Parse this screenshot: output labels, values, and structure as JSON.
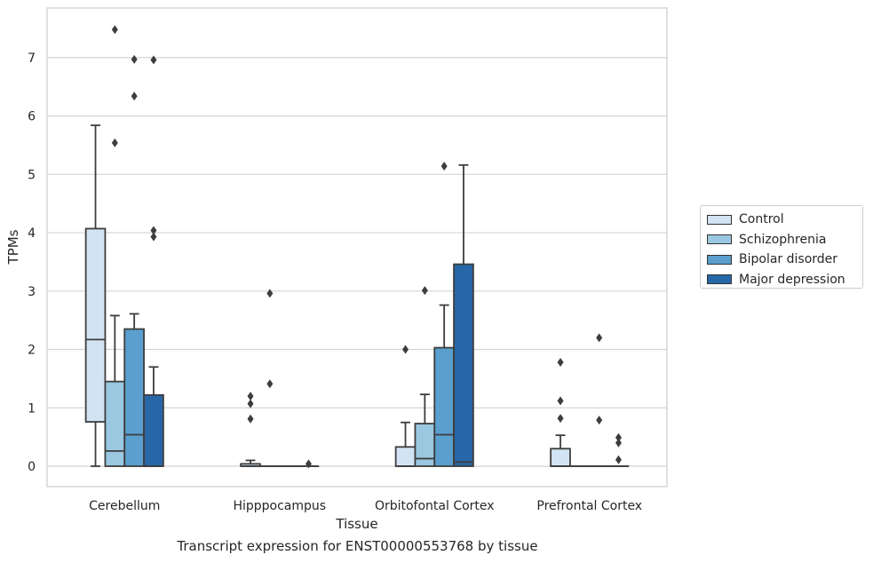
{
  "caption": "Transcript expression for ENST00000553768 by tissue",
  "chart_data": {
    "type": "box",
    "xlabel": "Tissue",
    "ylabel": "TPMs",
    "ylim": [
      -0.35,
      7.85
    ],
    "yticks": [
      0,
      1,
      2,
      3,
      4,
      5,
      6,
      7
    ],
    "grid": "horizontal",
    "legend_position": "right",
    "categories": [
      "Cerebellum",
      "Hipppocampus",
      "Orbitofontal Cortex",
      "Prefrontal Cortex"
    ],
    "series": [
      {
        "name": "Control",
        "color": "#d2e3f3",
        "boxes": [
          {
            "whisker_low": 0,
            "q1": 0.76,
            "median": 2.17,
            "q3": 4.07,
            "whisker_high": 5.84,
            "outliers": []
          },
          {
            "whisker_low": 0,
            "q1": 0,
            "median": 0,
            "q3": 0.04,
            "whisker_high": 0.1,
            "outliers": [
              0.81,
              1.07,
              1.2
            ]
          },
          {
            "whisker_low": 0,
            "q1": 0,
            "median": 0,
            "q3": 0.33,
            "whisker_high": 0.75,
            "outliers": [
              2.0
            ]
          },
          {
            "whisker_low": 0,
            "q1": 0,
            "median": 0,
            "q3": 0.3,
            "whisker_high": 0.53,
            "outliers": [
              0.82,
              1.12,
              1.78
            ]
          }
        ]
      },
      {
        "name": "Schizophrenia",
        "color": "#9ac8e0",
        "boxes": [
          {
            "whisker_low": 0,
            "q1": 0,
            "median": 0.26,
            "q3": 1.45,
            "whisker_high": 2.58,
            "outliers": [
              5.54,
              7.48
            ]
          },
          {
            "whisker_low": 0,
            "q1": 0,
            "median": 0,
            "q3": 0,
            "whisker_high": 0,
            "outliers": [
              1.41,
              2.96
            ]
          },
          {
            "whisker_low": 0,
            "q1": 0,
            "median": 0.13,
            "q3": 0.73,
            "whisker_high": 1.23,
            "outliers": [
              3.01
            ]
          },
          {
            "whisker_low": 0,
            "q1": 0,
            "median": 0,
            "q3": 0,
            "whisker_high": 0,
            "outliers": []
          }
        ]
      },
      {
        "name": "Bipolar disorder",
        "color": "#5a9fcd",
        "boxes": [
          {
            "whisker_low": 0,
            "q1": 0,
            "median": 0.54,
            "q3": 2.35,
            "whisker_high": 2.61,
            "outliers": [
              6.34,
              6.97
            ]
          },
          {
            "whisker_low": 0,
            "q1": 0,
            "median": 0,
            "q3": 0,
            "whisker_high": 0,
            "outliers": []
          },
          {
            "whisker_low": 0,
            "q1": 0,
            "median": 0.54,
            "q3": 2.03,
            "whisker_high": 2.76,
            "outliers": [
              5.14
            ]
          },
          {
            "whisker_low": 0,
            "q1": 0,
            "median": 0,
            "q3": 0,
            "whisker_high": 0,
            "outliers": [
              0.79,
              2.2
            ]
          }
        ]
      },
      {
        "name": "Major depression",
        "color": "#2767a7",
        "boxes": [
          {
            "whisker_low": 0,
            "q1": 0,
            "median": 0,
            "q3": 1.22,
            "whisker_high": 1.7,
            "outliers": [
              3.93,
              4.04,
              6.96
            ]
          },
          {
            "whisker_low": 0,
            "q1": 0,
            "median": 0,
            "q3": 0,
            "whisker_high": 0,
            "outliers": [
              0.04
            ]
          },
          {
            "whisker_low": 0,
            "q1": 0,
            "median": 0.07,
            "q3": 3.46,
            "whisker_high": 5.16,
            "outliers": []
          },
          {
            "whisker_low": 0,
            "q1": 0,
            "median": 0,
            "q3": 0,
            "whisker_high": 0,
            "outliers": [
              0.11,
              0.4,
              0.49
            ]
          }
        ]
      }
    ]
  }
}
